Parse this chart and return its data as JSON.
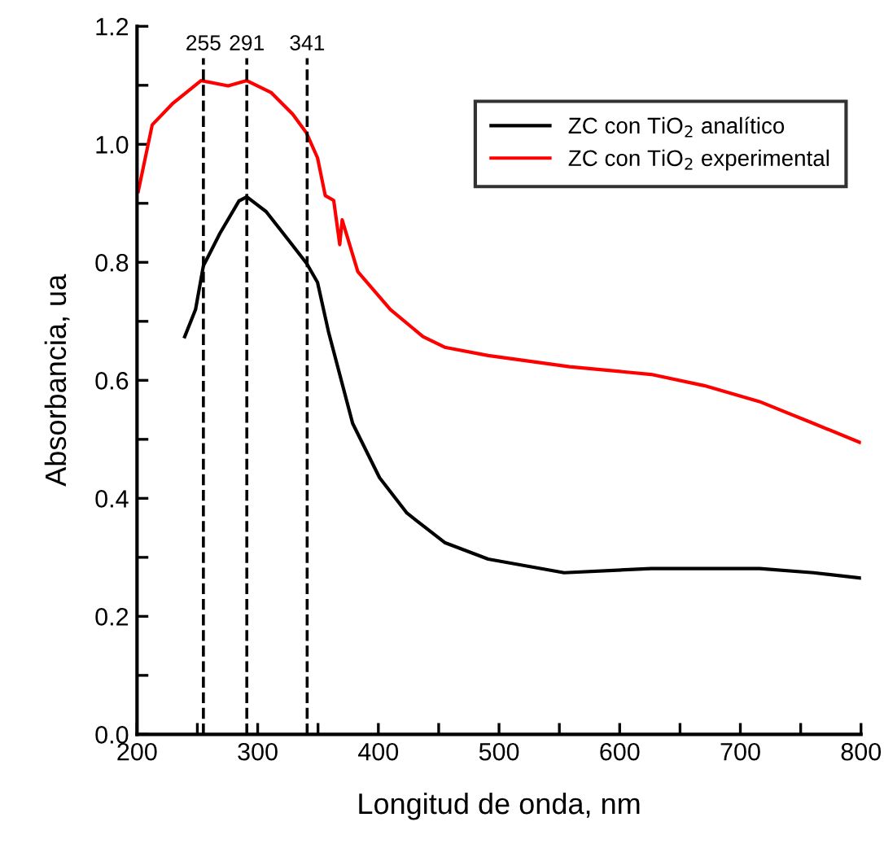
{
  "chart_data": {
    "type": "line",
    "xlabel": "Longitud de onda, nm",
    "ylabel": "Absorbancia, ua",
    "xlim": [
      200,
      800
    ],
    "ylim": [
      0,
      1.2
    ],
    "xticks": [
      200,
      {
        "value": 250,
        "label": null
      },
      300,
      {
        "value": 350,
        "label": null
      },
      400,
      {
        "value": 450,
        "label": null
      },
      500,
      {
        "value": 550,
        "label": null
      },
      600,
      {
        "value": 650,
        "label": null
      },
      700,
      {
        "value": 750,
        "label": null
      },
      800
    ],
    "yticks": [
      {
        "value": 0,
        "label": "0.0"
      },
      {
        "value": 0.1,
        "label": null
      },
      0.2,
      {
        "value": 0.3,
        "label": null
      },
      0.4,
      {
        "value": 0.5,
        "label": null
      },
      0.6,
      {
        "value": 0.7,
        "label": null
      },
      0.8,
      {
        "value": 0.9,
        "label": null
      },
      {
        "value": 1.0,
        "label": "1.0"
      },
      {
        "value": 1.1,
        "label": null
      },
      1.2
    ],
    "grid": false,
    "legend": "top right",
    "marker": "none",
    "line_style": "solid",
    "ref_lines": [
      {
        "axis": "x",
        "value": 255,
        "label": "255",
        "color": "#000000",
        "line_style": "dashed"
      },
      {
        "axis": "x",
        "value": 291,
        "label": "291",
        "color": "#000000",
        "line_style": "dashed"
      },
      {
        "axis": "x",
        "value": 341,
        "label": "341",
        "color": "#000000",
        "line_style": "dashed"
      }
    ],
    "series": [
      {
        "name": "ZC con TiO$_{2}$ analítico",
        "color": "#000000",
        "x": [
          239.5,
          248.5,
          255,
          268.7,
          284.5,
          291,
          307,
          325,
          340.6,
          349.6,
          358.6,
          378.7,
          401,
          423.7,
          455,
          491,
          554,
          626,
          716,
          760.6,
          799
        ],
        "values": [
          0.674,
          0.72,
          0.794,
          0.849,
          0.904,
          0.911,
          0.886,
          0.839,
          0.798,
          0.766,
          0.683,
          0.527,
          0.435,
          0.375,
          0.325,
          0.297,
          0.274,
          0.281,
          0.281,
          0.274,
          0.265
        ]
      },
      {
        "name": "ZC con TiO$_{2}$ experimental",
        "color": "#ff0000",
        "x": [
          201,
          212.6,
          230,
          253,
          275.5,
          291,
          311,
          329,
          340.5,
          349.6,
          356,
          363,
          368,
          370,
          383,
          410,
          437,
          455,
          491,
          558.5,
          626,
          670,
          715.8,
          760.6,
          798.8
        ],
        "values": [
          0.92,
          1.033,
          1.07,
          1.108,
          1.099,
          1.108,
          1.088,
          1.051,
          1.019,
          0.977,
          0.913,
          0.905,
          0.83,
          0.872,
          0.784,
          0.72,
          0.674,
          0.656,
          0.642,
          0.623,
          0.61,
          0.591,
          0.564,
          0.527,
          0.495
        ]
      }
    ]
  }
}
